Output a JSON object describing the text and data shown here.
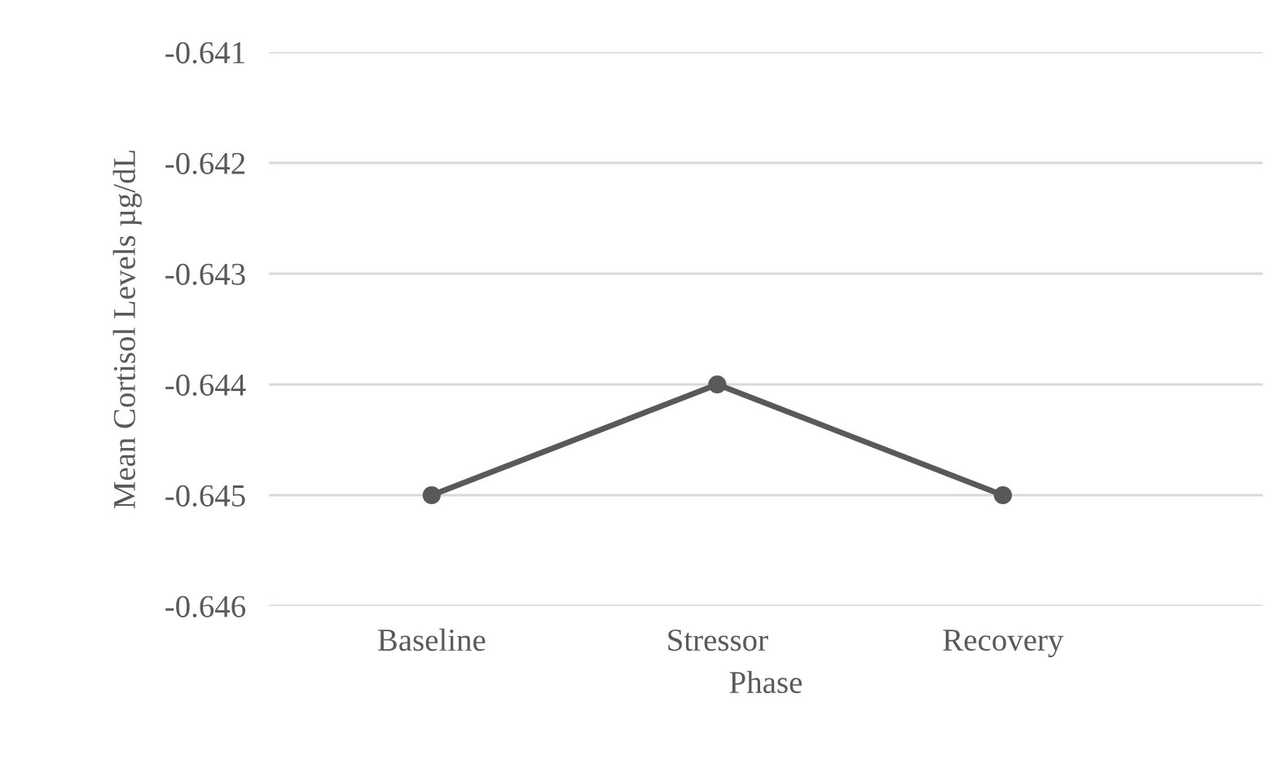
{
  "chart_data": {
    "type": "line",
    "xlabel": "Phase",
    "ylabel": "Mean Cortisol Levels µg/dL",
    "categories": [
      "Baseline",
      "Stressor",
      "Recovery"
    ],
    "series": [
      {
        "color": "#595959",
        "values": [
          -0.645,
          -0.644,
          -0.645
        ]
      }
    ],
    "ylim": [
      -0.646,
      -0.641
    ],
    "yticks": [
      -0.646,
      -0.645,
      -0.644,
      -0.643,
      -0.642,
      -0.641
    ],
    "grid": "y",
    "marker": "circle",
    "line_style": "solid"
  }
}
